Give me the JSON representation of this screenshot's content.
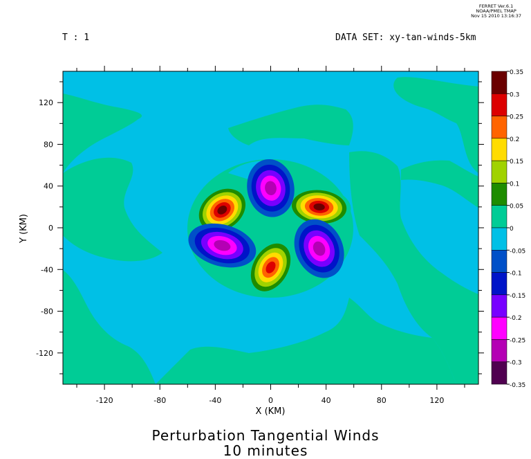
{
  "stamp": {
    "line1": "FERRET Ver.6.1",
    "line2": "NOAA/PMEL TMAP",
    "line3": "Nov 15 2010 13:16:37"
  },
  "header": {
    "time_label": "T : 1",
    "dataset_label": "DATA SET: xy-tan-winds-5km"
  },
  "title": {
    "line1": "Perturbation Tangential Winds",
    "line2": "10 minutes"
  },
  "chart_data": {
    "type": "contour",
    "xlabel": "X (KM)",
    "ylabel": "Y (KM)",
    "xlim": [
      -150,
      150
    ],
    "ylim": [
      -150,
      150
    ],
    "xticks": [
      -120,
      -80,
      -40,
      0,
      40,
      80,
      120
    ],
    "yticks": [
      120,
      80,
      40,
      0,
      -40,
      -80,
      -120
    ],
    "colorbar": {
      "levels": [
        0.35,
        0.3,
        0.25,
        0.2,
        0.15,
        0.1,
        0.05,
        0,
        -0.05,
        -0.1,
        -0.15,
        -0.2,
        -0.25,
        -0.3,
        -0.35
      ],
      "level_labels": [
        "0.35",
        "0.3",
        "0.25",
        "0.2",
        "0.15",
        "0.1",
        "0.05",
        "0",
        "-0.05",
        "-0.1",
        "-0.15",
        "-0.2",
        "-0.25",
        "-0.3",
        "-0.35"
      ],
      "colors": [
        "#6a0000",
        "#dc0000",
        "#ff6400",
        "#ffdc00",
        "#a0d200",
        "#1e8c00",
        "#00cc96",
        "#00c0e6",
        "#0050c8",
        "#0014c8",
        "#7800ff",
        "#ff00ff",
        "#b400b4",
        "#500050"
      ]
    },
    "features": {
      "positive_lobes": [
        {
          "x": -35,
          "y": 17,
          "peak": 0.33
        },
        {
          "x": 35,
          "y": 20,
          "peak": 0.33
        },
        {
          "x": 0,
          "y": -38,
          "peak": 0.3
        }
      ],
      "negative_lobes": [
        {
          "x": 0,
          "y": 38,
          "peak": -0.27
        },
        {
          "x": -35,
          "y": -17,
          "peak": -0.27
        },
        {
          "x": 35,
          "y": -20,
          "peak": -0.27
        }
      ]
    }
  }
}
